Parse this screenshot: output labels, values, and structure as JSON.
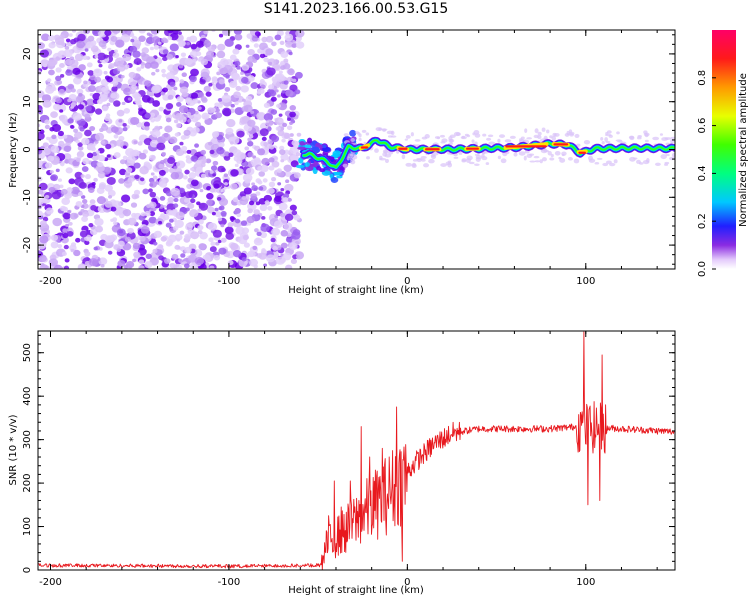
{
  "title": "S141.2023.166.00.53.G15",
  "colors": {
    "snr_line": "#e8191e",
    "axis": "#000000",
    "background": "#ffffff",
    "scatter_strong": "#6a00e8",
    "scatter_weak": "#c9a8f5"
  },
  "chart_data": [
    {
      "type": "heatmap",
      "title": "S141.2023.166.00.53.G15",
      "xlabel": "Height of straight line (km)",
      "ylabel": "Frequency (Hz)",
      "xlim": [
        -207,
        150
      ],
      "ylim": [
        -25,
        25
      ],
      "xticks": [
        -200,
        -100,
        0,
        100
      ],
      "yticks": [
        -20,
        -10,
        0,
        10,
        20
      ],
      "noise_region_km": [
        -207,
        -60
      ],
      "transition_region_km": [
        -60,
        -30
      ],
      "signal_band": {
        "center_hz": [
          {
            "x": -55,
            "y": -1.0
          },
          {
            "x": -45,
            "y": -2.5
          },
          {
            "x": -40,
            "y": -4.0
          },
          {
            "x": -33,
            "y": 0.5
          },
          {
            "x": -25,
            "y": 0.2
          },
          {
            "x": -17,
            "y": 2.0
          },
          {
            "x": -10,
            "y": 0.6
          },
          {
            "x": 0,
            "y": 0.0
          },
          {
            "x": 30,
            "y": 0.1
          },
          {
            "x": 60,
            "y": 0.4
          },
          {
            "x": 80,
            "y": 1.2
          },
          {
            "x": 90,
            "y": 1.0
          },
          {
            "x": 97,
            "y": -0.8
          },
          {
            "x": 105,
            "y": 0.2
          },
          {
            "x": 130,
            "y": 0.3
          },
          {
            "x": 150,
            "y": 0.2
          }
        ]
      },
      "colorbar": {
        "label": "Normalized spectral amplitude",
        "range": [
          0,
          1
        ],
        "ticks": [
          "0.0",
          "0.2",
          "0.4",
          "0.6",
          "0.8"
        ]
      }
    },
    {
      "type": "line",
      "xlabel": "Height of straight line (km)",
      "ylabel": "SNR (10 * v/v)",
      "xlim": [
        -207,
        150
      ],
      "ylim": [
        0,
        550
      ],
      "xticks": [
        -200,
        -100,
        0,
        100
      ],
      "yticks": [
        0,
        100,
        200,
        300,
        400,
        500
      ],
      "series": [
        {
          "profile": [
            {
              "x": -207,
              "y": 10
            },
            {
              "x": -100,
              "y": 8
            },
            {
              "x": -48,
              "y": 10
            },
            {
              "x": -45,
              "y": 60
            },
            {
              "x": -35,
              "y": 90
            },
            {
              "x": -25,
              "y": 130
            },
            {
              "x": -15,
              "y": 160
            },
            {
              "x": -5,
              "y": 200
            },
            {
              "x": 5,
              "y": 250
            },
            {
              "x": 15,
              "y": 290
            },
            {
              "x": 25,
              "y": 315
            },
            {
              "x": 40,
              "y": 325
            },
            {
              "x": 80,
              "y": 325
            },
            {
              "x": 95,
              "y": 330
            },
            {
              "x": 120,
              "y": 325
            },
            {
              "x": 150,
              "y": 318
            }
          ],
          "spikes": [
            {
              "x": -44,
              "y": 125
            },
            {
              "x": -41,
              "y": 205
            },
            {
              "x": -37,
              "y": 145
            },
            {
              "x": -32,
              "y": 205
            },
            {
              "x": -26,
              "y": 330
            },
            {
              "x": -21,
              "y": 260
            },
            {
              "x": -14,
              "y": 280
            },
            {
              "x": -6,
              "y": 375
            },
            {
              "x": -3,
              "y": 20
            },
            {
              "x": 99,
              "y": 548
            },
            {
              "x": 101,
              "y": 150
            },
            {
              "x": 108,
              "y": 160
            },
            {
              "x": 109,
              "y": 495
            }
          ]
        }
      ]
    }
  ]
}
